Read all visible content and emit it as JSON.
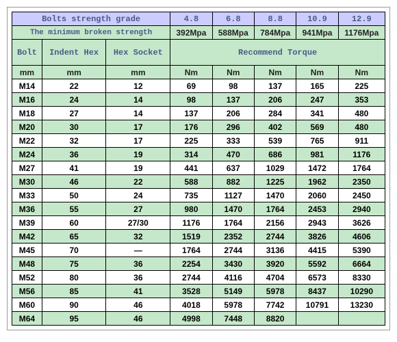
{
  "type": "table",
  "colors": {
    "purple_header": "#ccccff",
    "green_header": "#c6e8ca",
    "row_even": "#c6e8ca",
    "row_odd": "#ffffff",
    "border": "#000000",
    "header_text": "#4a5a8a"
  },
  "header": {
    "grade_label": "Bolts strength grade",
    "grades": [
      "4.8",
      "6.8",
      "8.8",
      "10.9",
      "12.9"
    ],
    "mbs_label": "The minimum broken strength",
    "mbs_values": [
      "392Mpa",
      "588Mpa",
      "784Mpa",
      "941Mpa",
      "1176Mpa"
    ],
    "bolt": "Bolt",
    "indent_hex": "Indent Hex",
    "hex_socket": "Hex Socket",
    "recommend_torque": "Recommend Torque",
    "units_left": "mm",
    "units_right": "Nm"
  },
  "rows": [
    [
      "M14",
      "22",
      "12",
      "69",
      "98",
      "137",
      "165",
      "225"
    ],
    [
      "M16",
      "24",
      "14",
      "98",
      "137",
      "206",
      "247",
      "353"
    ],
    [
      "M18",
      "27",
      "14",
      "137",
      "206",
      "284",
      "341",
      "480"
    ],
    [
      "M20",
      "30",
      "17",
      "176",
      "296",
      "402",
      "569",
      "480"
    ],
    [
      "M22",
      "32",
      "17",
      "225",
      "333",
      "539",
      "765",
      "911"
    ],
    [
      "M24",
      "36",
      "19",
      "314",
      "470",
      "686",
      "981",
      "1176"
    ],
    [
      "M27",
      "41",
      "19",
      "441",
      "637",
      "1029",
      "1472",
      "1764"
    ],
    [
      "M30",
      "46",
      "22",
      "588",
      "882",
      "1225",
      "1962",
      "2350"
    ],
    [
      "M33",
      "50",
      "24",
      "735",
      "1127",
      "1470",
      "2060",
      "2450"
    ],
    [
      "M36",
      "55",
      "27",
      "980",
      "1470",
      "1764",
      "2453",
      "2940"
    ],
    [
      "M39",
      "60",
      "27/30",
      "1176",
      "1764",
      "2156",
      "2943",
      "3626"
    ],
    [
      "M42",
      "65",
      "32",
      "1519",
      "2352",
      "2744",
      "3826",
      "4606"
    ],
    [
      "M45",
      "70",
      "—",
      "1764",
      "2744",
      "3136",
      "4415",
      "5390"
    ],
    [
      "M48",
      "75",
      "36",
      "2254",
      "3430",
      "3920",
      "5592",
      "6664"
    ],
    [
      "M52",
      "80",
      "36",
      "2744",
      "4116",
      "4704",
      "6573",
      "8330"
    ],
    [
      "M56",
      "85",
      "41",
      "3528",
      "5149",
      "5978",
      "8437",
      "10290"
    ],
    [
      "M60",
      "90",
      "46",
      "4018",
      "5978",
      "7742",
      "10791",
      "13230"
    ],
    [
      "M64",
      "95",
      "46",
      "4998",
      "7448",
      "8820",
      "",
      ""
    ]
  ]
}
